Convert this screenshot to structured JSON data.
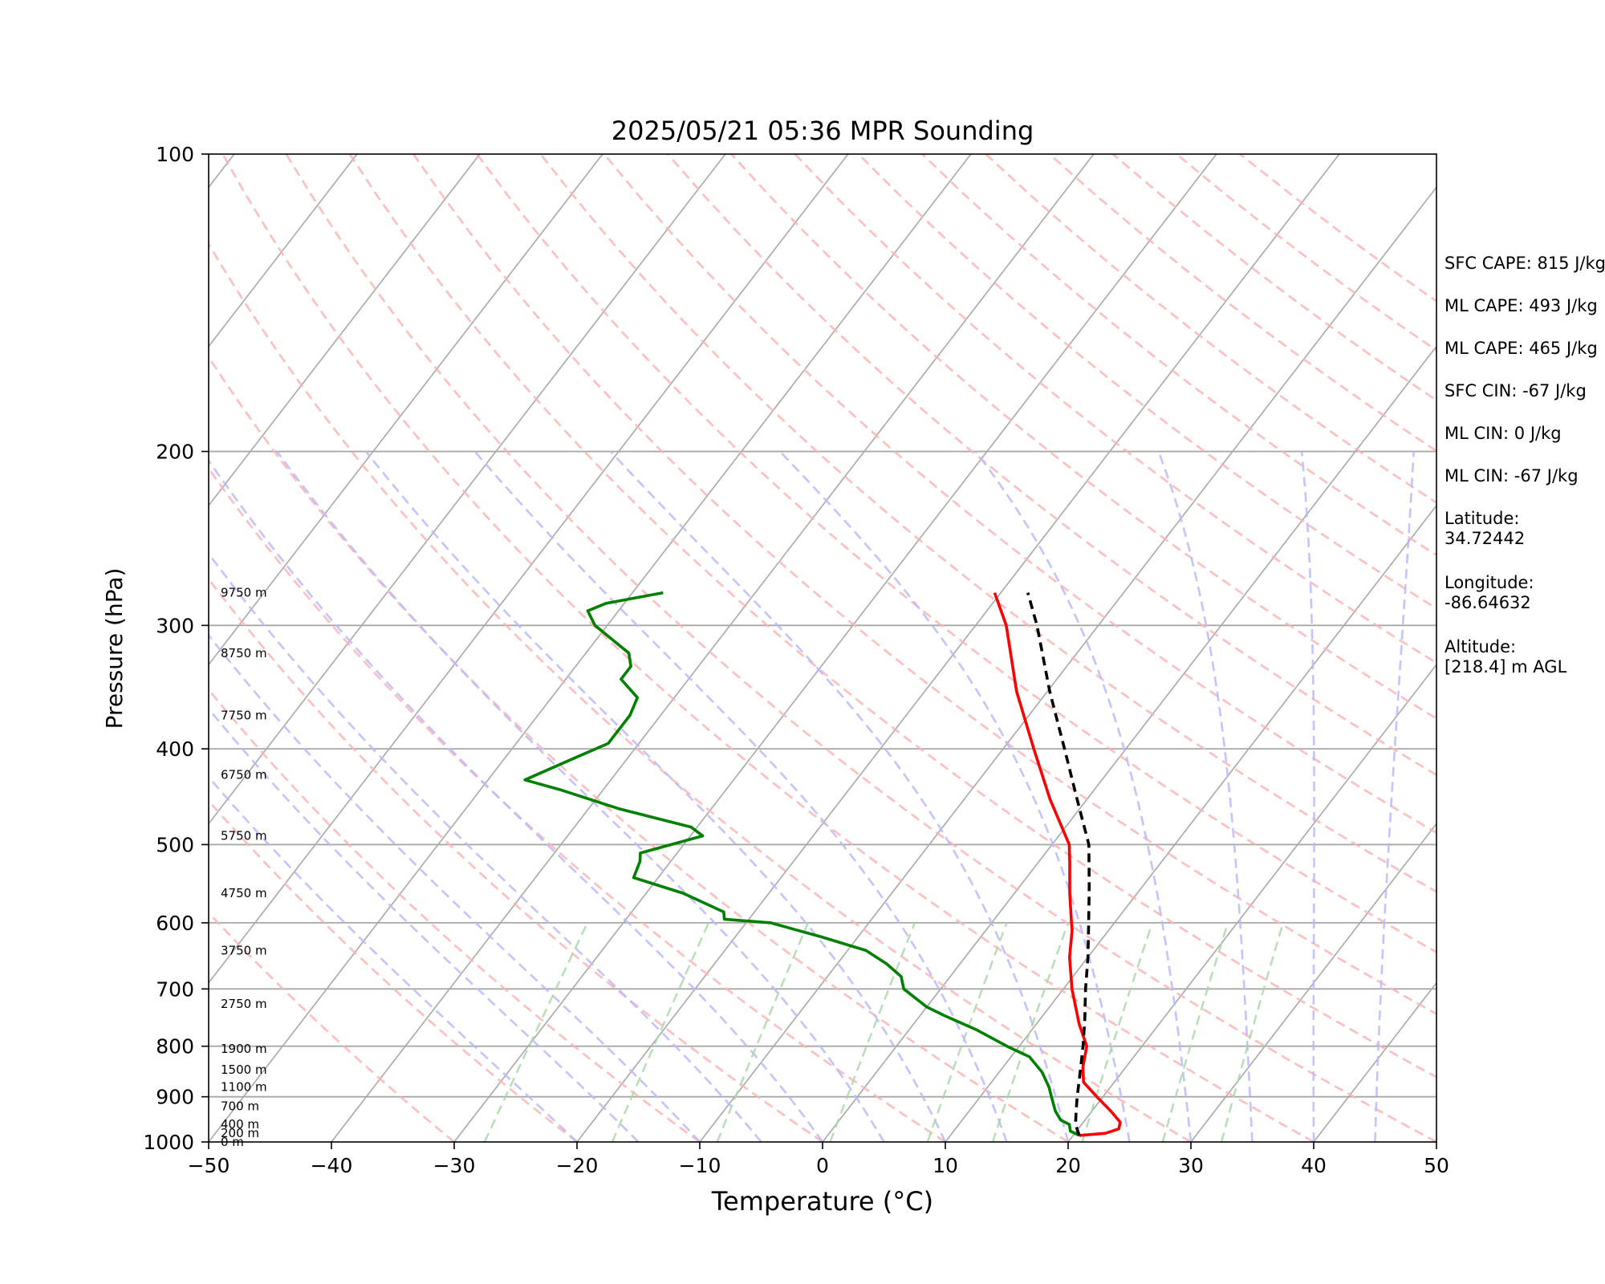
{
  "chart_data": {
    "type": "line",
    "title": "2025/05/21 05:36 MPR Sounding",
    "xlabel": "Temperature (°C)",
    "ylabel": "Pressure (hPa)",
    "xlim": [
      -50,
      50
    ],
    "ylim": [
      1000,
      100
    ],
    "y_scale": "log",
    "skew_t": true,
    "grid": true,
    "x_ticks": [
      "−50",
      "−40",
      "−30",
      "−20",
      "−10",
      "0",
      "10",
      "20",
      "30",
      "40",
      "50"
    ],
    "y_ticks": [
      "100",
      "200",
      "300",
      "400",
      "500",
      "600",
      "700",
      "800",
      "900",
      "1000"
    ],
    "height_labels": [
      {
        "p": 1000,
        "label": "0 m"
      },
      {
        "p": 980,
        "label": "200 m"
      },
      {
        "p": 960,
        "label": "400 m"
      },
      {
        "p": 920,
        "label": "700 m"
      },
      {
        "p": 880,
        "label": "1100 m"
      },
      {
        "p": 845,
        "label": "1500 m"
      },
      {
        "p": 805,
        "label": "1900 m"
      },
      {
        "p": 725,
        "label": "2750 m"
      },
      {
        "p": 640,
        "label": "3750 m"
      },
      {
        "p": 560,
        "label": "4750 m"
      },
      {
        "p": 490,
        "label": "5750 m"
      },
      {
        "p": 425,
        "label": "6750 m"
      },
      {
        "p": 370,
        "label": "7750 m"
      },
      {
        "p": 320,
        "label": "8750 m"
      },
      {
        "p": 278,
        "label": "9750 m"
      }
    ],
    "series": [
      {
        "role": "temperature",
        "color": "#ff0000",
        "points": [
          [
            985,
            20.5
          ],
          [
            980,
            22.5
          ],
          [
            970,
            23.3
          ],
          [
            955,
            23.0
          ],
          [
            930,
            21.5
          ],
          [
            900,
            19.5
          ],
          [
            870,
            17.5
          ],
          [
            840,
            16.5
          ],
          [
            800,
            15.5
          ],
          [
            760,
            13.5
          ],
          [
            700,
            10.7
          ],
          [
            650,
            8.5
          ],
          [
            610,
            7.0
          ],
          [
            600,
            6.5
          ],
          [
            560,
            4.5
          ],
          [
            520,
            2.5
          ],
          [
            500,
            1.4
          ],
          [
            450,
            -3.0
          ],
          [
            400,
            -7.5
          ],
          [
            350,
            -12.5
          ],
          [
            300,
            -17.5
          ],
          [
            278,
            -20.5
          ]
        ]
      },
      {
        "role": "dewpoint",
        "color": "#008000",
        "points": [
          [
            985,
            20.5
          ],
          [
            975,
            19.5
          ],
          [
            960,
            19.0
          ],
          [
            950,
            18.0
          ],
          [
            930,
            17.0
          ],
          [
            900,
            15.8
          ],
          [
            880,
            15.0
          ],
          [
            850,
            13.5
          ],
          [
            820,
            11.5
          ],
          [
            800,
            9.0
          ],
          [
            770,
            5.5
          ],
          [
            745,
            2.0
          ],
          [
            730,
            0.0
          ],
          [
            700,
            -3.0
          ],
          [
            680,
            -4.0
          ],
          [
            660,
            -6.0
          ],
          [
            640,
            -8.5
          ],
          [
            620,
            -13.0
          ],
          [
            610,
            -15.5
          ],
          [
            600,
            -18.0
          ],
          [
            595,
            -22.0
          ],
          [
            585,
            -22.5
          ],
          [
            560,
            -27.0
          ],
          [
            540,
            -32.0
          ],
          [
            520,
            -32.5
          ],
          [
            510,
            -33.0
          ],
          [
            490,
            -29.0
          ],
          [
            480,
            -30.5
          ],
          [
            460,
            -37.5
          ],
          [
            440,
            -43.5
          ],
          [
            430,
            -47.0
          ],
          [
            410,
            -44.5
          ],
          [
            395,
            -42.5
          ],
          [
            380,
            -42.5
          ],
          [
            370,
            -42.5
          ],
          [
            355,
            -43.0
          ],
          [
            340,
            -45.5
          ],
          [
            330,
            -45.5
          ],
          [
            320,
            -46.5
          ],
          [
            300,
            -51.0
          ],
          [
            290,
            -52.5
          ],
          [
            285,
            -51.5
          ],
          [
            278,
            -47.5
          ]
        ]
      },
      {
        "role": "parcel",
        "color": "#000000",
        "dashed": true,
        "points": [
          [
            985,
            20.5
          ],
          [
            960,
            19.5
          ],
          [
            930,
            18.7
          ],
          [
            900,
            17.9
          ],
          [
            850,
            16.6
          ],
          [
            800,
            15.2
          ],
          [
            750,
            13.6
          ],
          [
            700,
            11.8
          ],
          [
            650,
            10.0
          ],
          [
            600,
            7.9
          ],
          [
            550,
            5.6
          ],
          [
            500,
            3.0
          ],
          [
            450,
            -0.8
          ],
          [
            400,
            -5.0
          ],
          [
            350,
            -9.8
          ],
          [
            300,
            -15.0
          ],
          [
            278,
            -17.8
          ]
        ]
      }
    ]
  },
  "side_panel": {
    "sfc_cape": "SFC CAPE: 815 J/kg",
    "ml_cape_1": "ML CAPE: 493 J/kg",
    "ml_cape_2": "ML CAPE: 465 J/kg",
    "sfc_cin": "SFC CIN: -67 J/kg",
    "ml_cin_1": "ML CIN: 0 J/kg",
    "ml_cin_2": "ML CIN: -67 J/kg",
    "latitude_label": "Latitude:",
    "latitude_value": "34.72442",
    "longitude_label": "Longitude:",
    "longitude_value": "-86.64632",
    "altitude_label": "Altitude:",
    "altitude_value": "[218.4] m AGL"
  }
}
